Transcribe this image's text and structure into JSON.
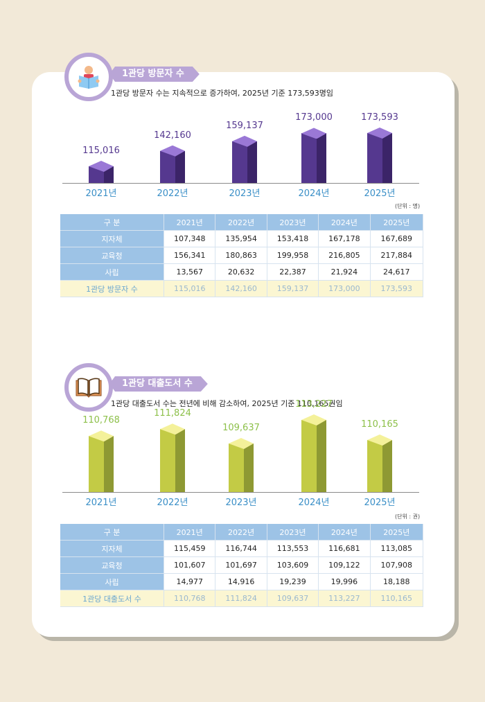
{
  "visitors": {
    "tag": "1관당 방문자 수",
    "subtitle": "1관당 방문자 수는 지속적으로 증가하여, 2025년 기준 173,593명임",
    "unit": "(단위 : 명)",
    "icon": "reading-person-icon",
    "color": "#55388f",
    "table": {
      "headers": [
        "구 분",
        "2021년",
        "2022년",
        "2023년",
        "2024년",
        "2025년"
      ],
      "rows": [
        {
          "label": "지자체",
          "values": [
            "107,348",
            "135,954",
            "153,418",
            "167,178",
            "167,689"
          ]
        },
        {
          "label": "교육청",
          "values": [
            "156,341",
            "180,863",
            "199,958",
            "216,805",
            "217,884"
          ]
        },
        {
          "label": "사립",
          "values": [
            "13,567",
            "20,632",
            "22,387",
            "21,924",
            "24,617"
          ]
        },
        {
          "label": "1관당 방문자 수",
          "values": [
            "115,016",
            "142,160",
            "159,137",
            "173,000",
            "173,593"
          ]
        }
      ]
    }
  },
  "loans": {
    "tag": "1관당 대출도서 수",
    "subtitle": "1관당 대출도서 수는 전년에 비해 감소하여, 2025년 기준 110,165권임",
    "unit": "(단위 : 권)",
    "icon": "open-book-icon",
    "color": "#c3cb45",
    "table": {
      "headers": [
        "구 분",
        "2021년",
        "2022년",
        "2023년",
        "2024년",
        "2025년"
      ],
      "rows": [
        {
          "label": "지자체",
          "values": [
            "115,459",
            "116,744",
            "113,553",
            "116,681",
            "113,085"
          ]
        },
        {
          "label": "교육청",
          "values": [
            "101,607",
            "101,697",
            "103,609",
            "109,122",
            "107,908"
          ]
        },
        {
          "label": "사립",
          "values": [
            "14,977",
            "14,916",
            "19,239",
            "19,996",
            "18,188"
          ]
        },
        {
          "label": "1관당 대출도서 수",
          "values": [
            "110,768",
            "111,824",
            "109,637",
            "113,227",
            "110,165"
          ]
        }
      ]
    }
  },
  "chart_data": [
    {
      "type": "bar",
      "title": "1관당 방문자 수",
      "categories": [
        "2021년",
        "2022년",
        "2023년",
        "2024년",
        "2025년"
      ],
      "values": [
        115016,
        142160,
        159137,
        173000,
        173593
      ],
      "labels": [
        "115,016",
        "142,160",
        "159,137",
        "173,000",
        "173,593"
      ],
      "unit": "명",
      "color": "#55388f"
    },
    {
      "type": "bar",
      "title": "1관당 대출도서 수",
      "categories": [
        "2021년",
        "2022년",
        "2023년",
        "2024년",
        "2025년"
      ],
      "values": [
        110768,
        111824,
        109637,
        113227,
        110165
      ],
      "labels": [
        "110,768",
        "111,824",
        "109,637",
        "113,227",
        "110,165"
      ],
      "unit": "권",
      "color": "#c3cb45"
    }
  ]
}
